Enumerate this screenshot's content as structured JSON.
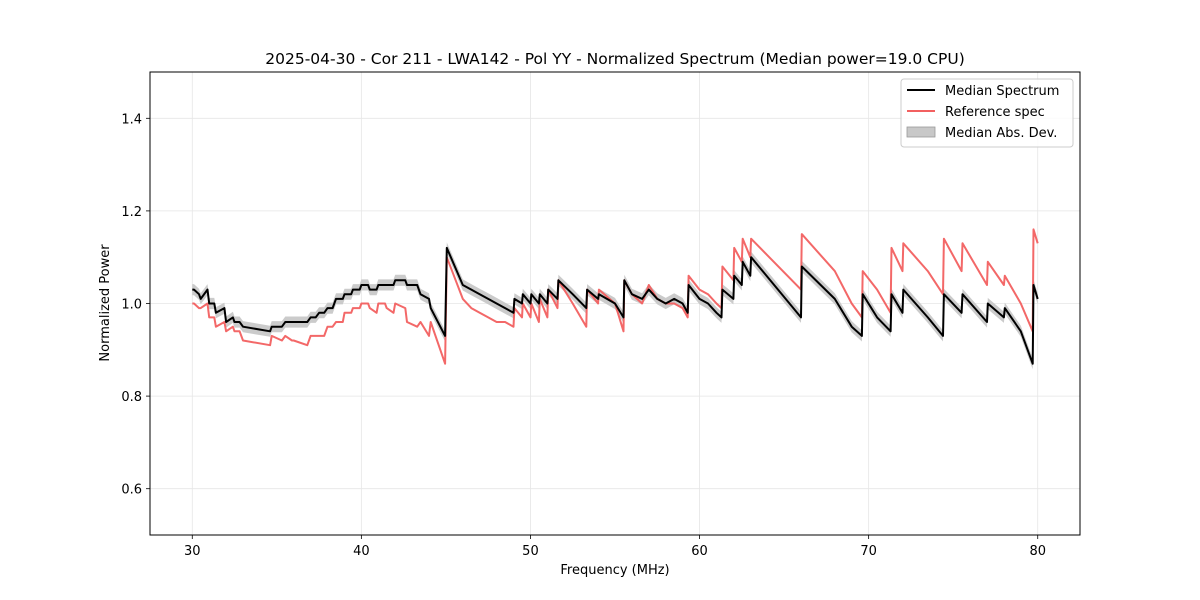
{
  "chart_data": {
    "type": "line",
    "title": "2025-04-30 - Cor 211 - LWA142 - Pol YY - Normalized Spectrum (Median power=19.0 CPU)",
    "xlabel": "Frequency (MHz)",
    "ylabel": "Normalized Power",
    "xlim": [
      27.5,
      82.5
    ],
    "ylim": [
      0.5,
      1.5
    ],
    "xticks": [
      30,
      40,
      50,
      60,
      70,
      80
    ],
    "yticks": [
      0.6,
      0.8,
      1.0,
      1.2,
      1.4
    ],
    "xtick_labels": [
      "30",
      "40",
      "50",
      "60",
      "70",
      "80"
    ],
    "ytick_labels": [
      "0.6",
      "0.8",
      "1.0",
      "1.2",
      "1.4"
    ],
    "grid": true,
    "legend_position": "top-right",
    "mad_halfwidth": 0.012,
    "series": [
      {
        "name": "Median Spectrum",
        "color": "#000000",
        "x": [
          30.0,
          30.1,
          30.4,
          30.5,
          30.9,
          31.0,
          31.3,
          31.4,
          31.9,
          32.0,
          32.4,
          32.5,
          32.8,
          33.0,
          34.6,
          34.7,
          35.3,
          35.5,
          35.9,
          36.0,
          36.8,
          37.0,
          37.3,
          37.5,
          37.8,
          38.0,
          38.3,
          38.5,
          38.9,
          39.0,
          39.4,
          39.5,
          39.9,
          40.0,
          40.4,
          40.5,
          40.9,
          41.0,
          41.4,
          41.5,
          41.9,
          42.0,
          42.6,
          42.7,
          43.3,
          43.5,
          44.0,
          44.1,
          44.95,
          45.05,
          46.0,
          46.5,
          47.0,
          47.5,
          48.0,
          48.5,
          49.0,
          49.05,
          49.5,
          49.55,
          50.0,
          50.05,
          50.5,
          50.55,
          51.0,
          51.05,
          51.6,
          51.65,
          52.5,
          53.3,
          53.35,
          54.0,
          54.05,
          55.0,
          55.5,
          55.55,
          56.0,
          56.6,
          57.0,
          57.5,
          58.0,
          58.5,
          59.0,
          59.3,
          59.35,
          60.0,
          60.5,
          61.0,
          61.3,
          61.35,
          62.0,
          62.05,
          62.5,
          62.55,
          63.0,
          63.05,
          66.0,
          66.05,
          68.0,
          69.0,
          69.6,
          69.65,
          70.5,
          71.3,
          71.35,
          72.0,
          72.05,
          73.5,
          74.4,
          74.45,
          75.5,
          75.55,
          77.0,
          77.05,
          78.0,
          78.05,
          79.0,
          79.7,
          79.75,
          80.0
        ],
        "values": [
          1.03,
          1.03,
          1.02,
          1.01,
          1.03,
          1.0,
          1.0,
          0.98,
          0.99,
          0.96,
          0.97,
          0.96,
          0.96,
          0.95,
          0.94,
          0.95,
          0.95,
          0.96,
          0.96,
          0.96,
          0.96,
          0.97,
          0.97,
          0.98,
          0.98,
          0.99,
          0.99,
          1.01,
          1.01,
          1.02,
          1.02,
          1.03,
          1.03,
          1.04,
          1.04,
          1.03,
          1.03,
          1.04,
          1.04,
          1.04,
          1.04,
          1.05,
          1.05,
          1.04,
          1.04,
          1.02,
          1.01,
          0.99,
          0.93,
          1.12,
          1.04,
          1.03,
          1.02,
          1.01,
          1.0,
          0.99,
          0.98,
          1.01,
          1.0,
          1.02,
          1.0,
          1.02,
          1.0,
          1.02,
          1.0,
          1.03,
          1.01,
          1.05,
          1.02,
          0.99,
          1.03,
          1.01,
          1.02,
          1.0,
          0.97,
          1.05,
          1.02,
          1.01,
          1.03,
          1.01,
          1.0,
          1.01,
          1.0,
          0.98,
          1.04,
          1.01,
          1.0,
          0.98,
          0.97,
          1.03,
          1.01,
          1.06,
          1.04,
          1.09,
          1.06,
          1.1,
          0.97,
          1.08,
          1.01,
          0.95,
          0.93,
          1.02,
          0.97,
          0.94,
          1.02,
          0.98,
          1.03,
          0.97,
          0.93,
          1.02,
          0.98,
          1.02,
          0.96,
          1.0,
          0.97,
          0.99,
          0.94,
          0.87,
          1.04,
          1.01
        ]
      },
      {
        "name": "Reference spec",
        "color": "#f26060",
        "x": [
          30.0,
          30.1,
          30.4,
          30.5,
          30.9,
          31.0,
          31.3,
          31.4,
          31.9,
          32.0,
          32.4,
          32.5,
          32.8,
          33.0,
          34.6,
          34.7,
          35.3,
          35.5,
          35.9,
          36.0,
          36.8,
          37.0,
          37.3,
          37.5,
          37.8,
          38.0,
          38.3,
          38.5,
          38.9,
          39.0,
          39.4,
          39.5,
          39.9,
          40.0,
          40.4,
          40.5,
          40.9,
          41.0,
          41.4,
          41.5,
          41.9,
          42.0,
          42.6,
          42.7,
          43.3,
          43.5,
          44.0,
          44.1,
          44.95,
          45.05,
          46.0,
          46.5,
          47.0,
          47.5,
          48.0,
          48.5,
          49.0,
          49.05,
          49.5,
          49.55,
          50.0,
          50.05,
          50.5,
          50.55,
          51.0,
          51.05,
          51.6,
          51.65,
          52.5,
          53.3,
          53.35,
          54.0,
          54.05,
          55.0,
          55.5,
          55.55,
          56.0,
          56.6,
          57.0,
          57.5,
          58.0,
          58.5,
          59.0,
          59.3,
          59.35,
          60.0,
          60.5,
          61.0,
          61.3,
          61.35,
          62.0,
          62.05,
          62.5,
          62.55,
          63.0,
          63.05,
          66.0,
          66.05,
          68.0,
          69.0,
          69.6,
          69.65,
          70.5,
          71.3,
          71.35,
          72.0,
          72.05,
          73.5,
          74.4,
          74.45,
          75.5,
          75.55,
          77.0,
          77.05,
          78.0,
          78.05,
          79.0,
          79.7,
          79.75,
          80.0
        ],
        "values": [
          1.0,
          1.0,
          0.99,
          0.99,
          1.0,
          0.97,
          0.97,
          0.95,
          0.96,
          0.94,
          0.95,
          0.94,
          0.94,
          0.92,
          0.91,
          0.93,
          0.92,
          0.93,
          0.92,
          0.92,
          0.91,
          0.93,
          0.93,
          0.93,
          0.93,
          0.95,
          0.95,
          0.96,
          0.96,
          0.98,
          0.98,
          0.99,
          0.99,
          1.0,
          1.0,
          0.99,
          0.98,
          1.0,
          1.0,
          0.99,
          0.98,
          1.0,
          0.99,
          0.96,
          0.95,
          0.96,
          0.93,
          0.96,
          0.87,
          1.1,
          1.01,
          0.99,
          0.98,
          0.97,
          0.96,
          0.96,
          0.95,
          0.99,
          0.97,
          1.0,
          0.97,
          1.0,
          0.96,
          1.01,
          0.97,
          1.03,
          0.99,
          1.05,
          1.0,
          0.95,
          1.03,
          1.0,
          1.03,
          1.0,
          0.94,
          1.05,
          1.02,
          1.0,
          1.04,
          1.01,
          1.0,
          1.0,
          0.99,
          0.97,
          1.06,
          1.03,
          1.02,
          1.0,
          0.99,
          1.08,
          1.05,
          1.12,
          1.09,
          1.14,
          1.1,
          1.14,
          1.03,
          1.15,
          1.07,
          1.0,
          0.97,
          1.07,
          1.03,
          0.98,
          1.12,
          1.07,
          1.13,
          1.07,
          1.02,
          1.14,
          1.07,
          1.13,
          1.04,
          1.09,
          1.04,
          1.06,
          1.0,
          0.94,
          1.16,
          1.13
        ]
      }
    ],
    "legend": [
      {
        "label": "Median Spectrum",
        "kind": "line",
        "color": "#000000"
      },
      {
        "label": "Reference spec",
        "kind": "line",
        "color": "#f26060"
      },
      {
        "label": "Median Abs. Dev.",
        "kind": "patch",
        "color": "#c8c8c8"
      }
    ]
  }
}
